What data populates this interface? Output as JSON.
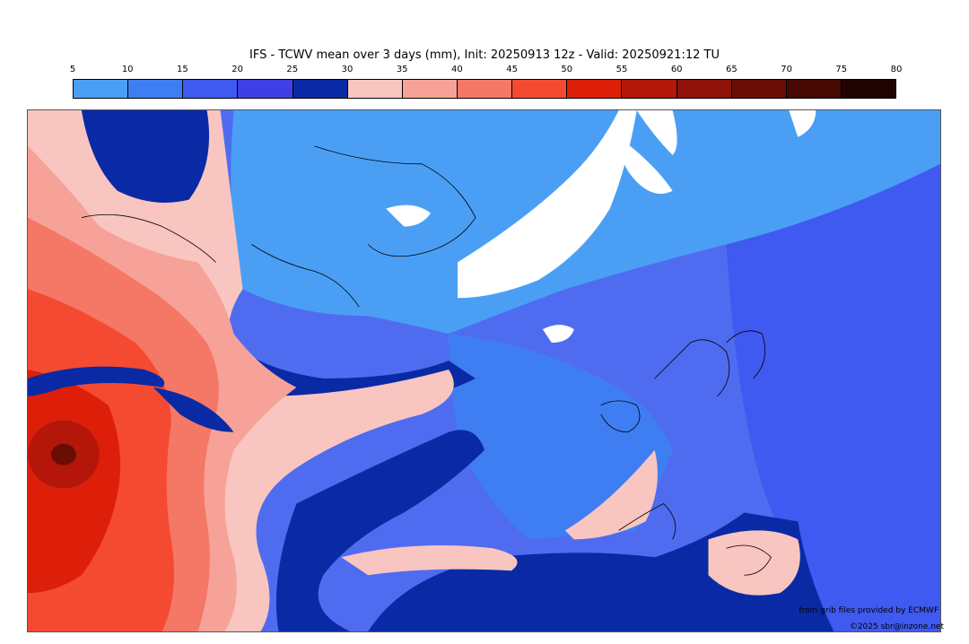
{
  "title": "IFS - TCWV mean over 3 days (mm), Init: 20250913 12z - Valid: 20250921:12 TU",
  "legend": {
    "ticks": [
      "5",
      "10",
      "15",
      "20",
      "25",
      "30",
      "35",
      "40",
      "45",
      "50",
      "55",
      "60",
      "65",
      "70",
      "75",
      "80"
    ],
    "colors": [
      "#4a9ff5",
      "#3f7ef2",
      "#3f5af0",
      "#3f3fe8",
      "#0a2aa5",
      "#f9c5c0",
      "#f7a298",
      "#f57766",
      "#f54a32",
      "#dd1f0a",
      "#b5160a",
      "#8e1208",
      "#6a0d06",
      "#450803",
      "#1e0302"
    ]
  },
  "map": {
    "palette": {
      "lightblue": "#4a9ff5",
      "blue": "#3f7ef2",
      "midblue": "#4f6cf0",
      "violet": "#3f5af0",
      "navy": "#0a2aa5",
      "pink": "#f9c5c0",
      "salmon": "#f7a298",
      "coral": "#f57766",
      "red": "#f54a32",
      "deepred": "#dd1f0a",
      "maroon": "#b5160a",
      "dark": "#6a0d06",
      "land_mask": "#ffffff",
      "coastline": "#000000"
    }
  },
  "credits": {
    "source": "from grib files provided by ECMWF",
    "copyright": "©2025 sbr@inzone.net"
  }
}
